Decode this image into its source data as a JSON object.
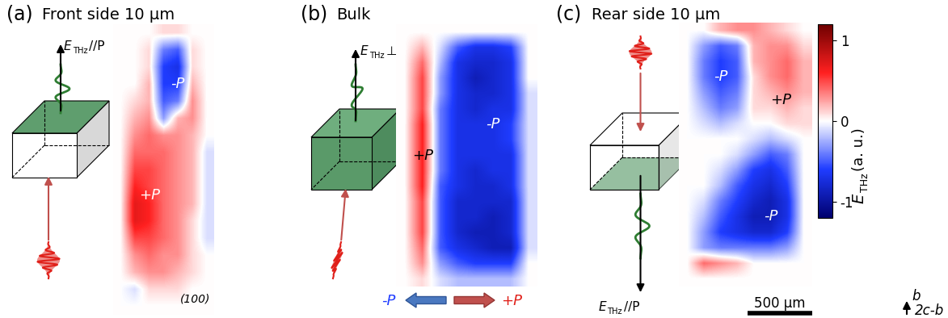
{
  "chart_data": [
    {
      "type": "heatmap",
      "panel": "(a)",
      "title": "Front side 10 µm",
      "schematic_label": {
        "symbol": "E",
        "subscript": "THz",
        "relation": "//P"
      },
      "annotations": [
        "-P",
        "+P",
        "(100)"
      ],
      "tick_labels": false,
      "cells": [
        [
          0,
          0,
          0,
          0.1,
          0.1,
          0,
          0
        ],
        [
          0,
          0,
          0.1,
          -0.4,
          -0.5,
          0.1,
          0
        ],
        [
          0,
          0,
          0.1,
          -0.6,
          -0.7,
          0.1,
          0
        ],
        [
          0,
          0,
          0.2,
          -0.6,
          -0.6,
          0.2,
          0
        ],
        [
          0,
          0.1,
          0.2,
          -0.5,
          -0.4,
          0.3,
          0
        ],
        [
          0,
          0.2,
          0.3,
          -0.3,
          0.2,
          0.3,
          0
        ],
        [
          0,
          0.3,
          0.4,
          0.3,
          0.3,
          0.2,
          0
        ],
        [
          0,
          0.4,
          0.4,
          0.4,
          0.3,
          0.2,
          -0.1
        ],
        [
          0,
          0.5,
          0.5,
          0.4,
          0.3,
          0.2,
          -0.1
        ],
        [
          0,
          0.6,
          0.5,
          0.4,
          0.3,
          0.2,
          -0.1
        ],
        [
          0,
          0.7,
          0.6,
          0.4,
          0.3,
          0.2,
          -0.1
        ],
        [
          0,
          0.7,
          0.6,
          0.4,
          0.3,
          0.1,
          -0.1
        ],
        [
          0,
          0.5,
          0.5,
          0.4,
          0.3,
          0.1,
          -0.1
        ],
        [
          0,
          0.3,
          0.4,
          0.3,
          0.3,
          0.1,
          0
        ],
        [
          0,
          0.2,
          0.3,
          0.3,
          0.2,
          0.1,
          0
        ],
        [
          0,
          -0.1,
          0.1,
          0.1,
          0.1,
          0,
          0
        ],
        [
          0,
          0,
          0,
          0,
          0,
          0,
          0
        ]
      ]
    },
    {
      "type": "heatmap",
      "panel": "(b)",
      "title": "Bulk",
      "schematic_label": {
        "symbol": "E",
        "subscript": "THz",
        "relation": "⊥P"
      },
      "annotations": [
        "+P",
        "-P"
      ],
      "tick_labels": false,
      "cells": [
        [
          0,
          0,
          0,
          0,
          0,
          0,
          0,
          0
        ],
        [
          0,
          0.2,
          -0.1,
          -0.5,
          -0.7,
          -0.7,
          -0.6,
          0
        ],
        [
          0,
          0.4,
          -0.2,
          -0.7,
          -0.8,
          -0.8,
          -0.7,
          0
        ],
        [
          0,
          0.5,
          -0.3,
          -0.7,
          -0.9,
          -0.8,
          -0.7,
          0
        ],
        [
          0,
          0.5,
          -0.3,
          -0.7,
          -0.8,
          -0.8,
          -0.7,
          -0.1
        ],
        [
          0,
          0.5,
          -0.4,
          -0.7,
          -0.8,
          -0.7,
          -0.7,
          -0.1
        ],
        [
          0,
          0.6,
          -0.4,
          -0.7,
          -0.7,
          -0.7,
          -0.6,
          -0.1
        ],
        [
          0,
          0.6,
          -0.4,
          -0.7,
          -0.7,
          -0.7,
          -0.6,
          -0.1
        ],
        [
          0,
          0.6,
          -0.4,
          -0.7,
          -0.7,
          -0.7,
          -0.7,
          -0.1
        ],
        [
          0,
          0.6,
          -0.4,
          -0.7,
          -0.8,
          -0.7,
          -0.7,
          -0.1
        ],
        [
          0,
          0.6,
          -0.5,
          -0.7,
          -0.8,
          -0.8,
          -0.7,
          -0.1
        ],
        [
          0,
          0.5,
          -0.5,
          -0.8,
          -0.8,
          -0.8,
          -0.8,
          -0.1
        ],
        [
          0,
          0.5,
          -0.5,
          -0.8,
          -0.8,
          -0.9,
          -0.8,
          -0.1
        ],
        [
          0,
          0.5,
          -0.5,
          -0.8,
          -0.9,
          -0.9,
          -0.8,
          -0.1
        ],
        [
          0,
          0.4,
          -0.5,
          -0.7,
          -0.8,
          -0.9,
          -0.9,
          -0.1
        ],
        [
          0,
          0.3,
          -0.3,
          -0.5,
          -0.6,
          -0.6,
          -0.6,
          0
        ],
        [
          0,
          0.1,
          -0.1,
          -0.2,
          -0.2,
          -0.2,
          -0.2,
          0
        ]
      ]
    },
    {
      "type": "heatmap",
      "panel": "(c)",
      "title": "Rear side 10 µm",
      "schematic_label": {
        "symbol": "E",
        "subscript": "THz",
        "relation": "//P"
      },
      "annotations": [
        "-P",
        "+P",
        "-P"
      ],
      "tick_labels": false,
      "cells": [
        [
          0,
          0,
          0.2,
          0.3,
          0.3,
          0.2,
          0.1,
          0
        ],
        [
          0,
          -0.3,
          -0.5,
          -0.4,
          0.2,
          0.3,
          0.3,
          0.1
        ],
        [
          0,
          -0.4,
          -0.6,
          -0.5,
          0.2,
          0.3,
          0.4,
          0.2
        ],
        [
          0,
          -0.4,
          -0.6,
          -0.5,
          0.1,
          0.3,
          0.4,
          0.2
        ],
        [
          0,
          -0.3,
          -0.5,
          -0.4,
          0.1,
          0.2,
          0.3,
          0.2
        ],
        [
          0,
          -0.2,
          -0.4,
          -0.3,
          0.1,
          0.1,
          0.2,
          0.1
        ],
        [
          0,
          -0.1,
          -0.2,
          -0.1,
          0,
          0,
          0.1,
          0.1
        ],
        [
          0,
          0,
          0,
          0,
          -0.1,
          -0.2,
          -0.1,
          0
        ],
        [
          0,
          0,
          0,
          -0.1,
          -0.3,
          -0.5,
          -0.4,
          0
        ],
        [
          0,
          0,
          -0.1,
          -0.3,
          -0.6,
          -0.7,
          -0.5,
          0
        ],
        [
          0,
          0,
          -0.2,
          -0.5,
          -0.7,
          -0.8,
          -0.6,
          0
        ],
        [
          0,
          -0.1,
          -0.4,
          -0.6,
          -0.8,
          -0.9,
          -0.7,
          0
        ],
        [
          0,
          -0.2,
          -0.5,
          -0.7,
          -0.9,
          -0.9,
          -0.7,
          0
        ],
        [
          0,
          -0.3,
          -0.6,
          -0.7,
          -0.8,
          -0.8,
          -0.6,
          0
        ],
        [
          0,
          -0.3,
          -0.4,
          -0.4,
          -0.4,
          -0.4,
          -0.3,
          0
        ],
        [
          0,
          0.4,
          0.3,
          0.2,
          0,
          0,
          0,
          0
        ],
        [
          0,
          0,
          0,
          0,
          0,
          0,
          0,
          0
        ]
      ]
    }
  ],
  "colorbar": {
    "range": [
      -1.2,
      1.2
    ],
    "ticks": [
      -1,
      0,
      1
    ],
    "label": {
      "symbol": "E",
      "subscript": "THz",
      "unit": "(a. u.)"
    }
  },
  "scale_bar": "500 µm",
  "polarization_arrows": [
    "-P",
    "+P"
  ],
  "crystal_axes": [
    "b",
    "2c-b"
  ]
}
